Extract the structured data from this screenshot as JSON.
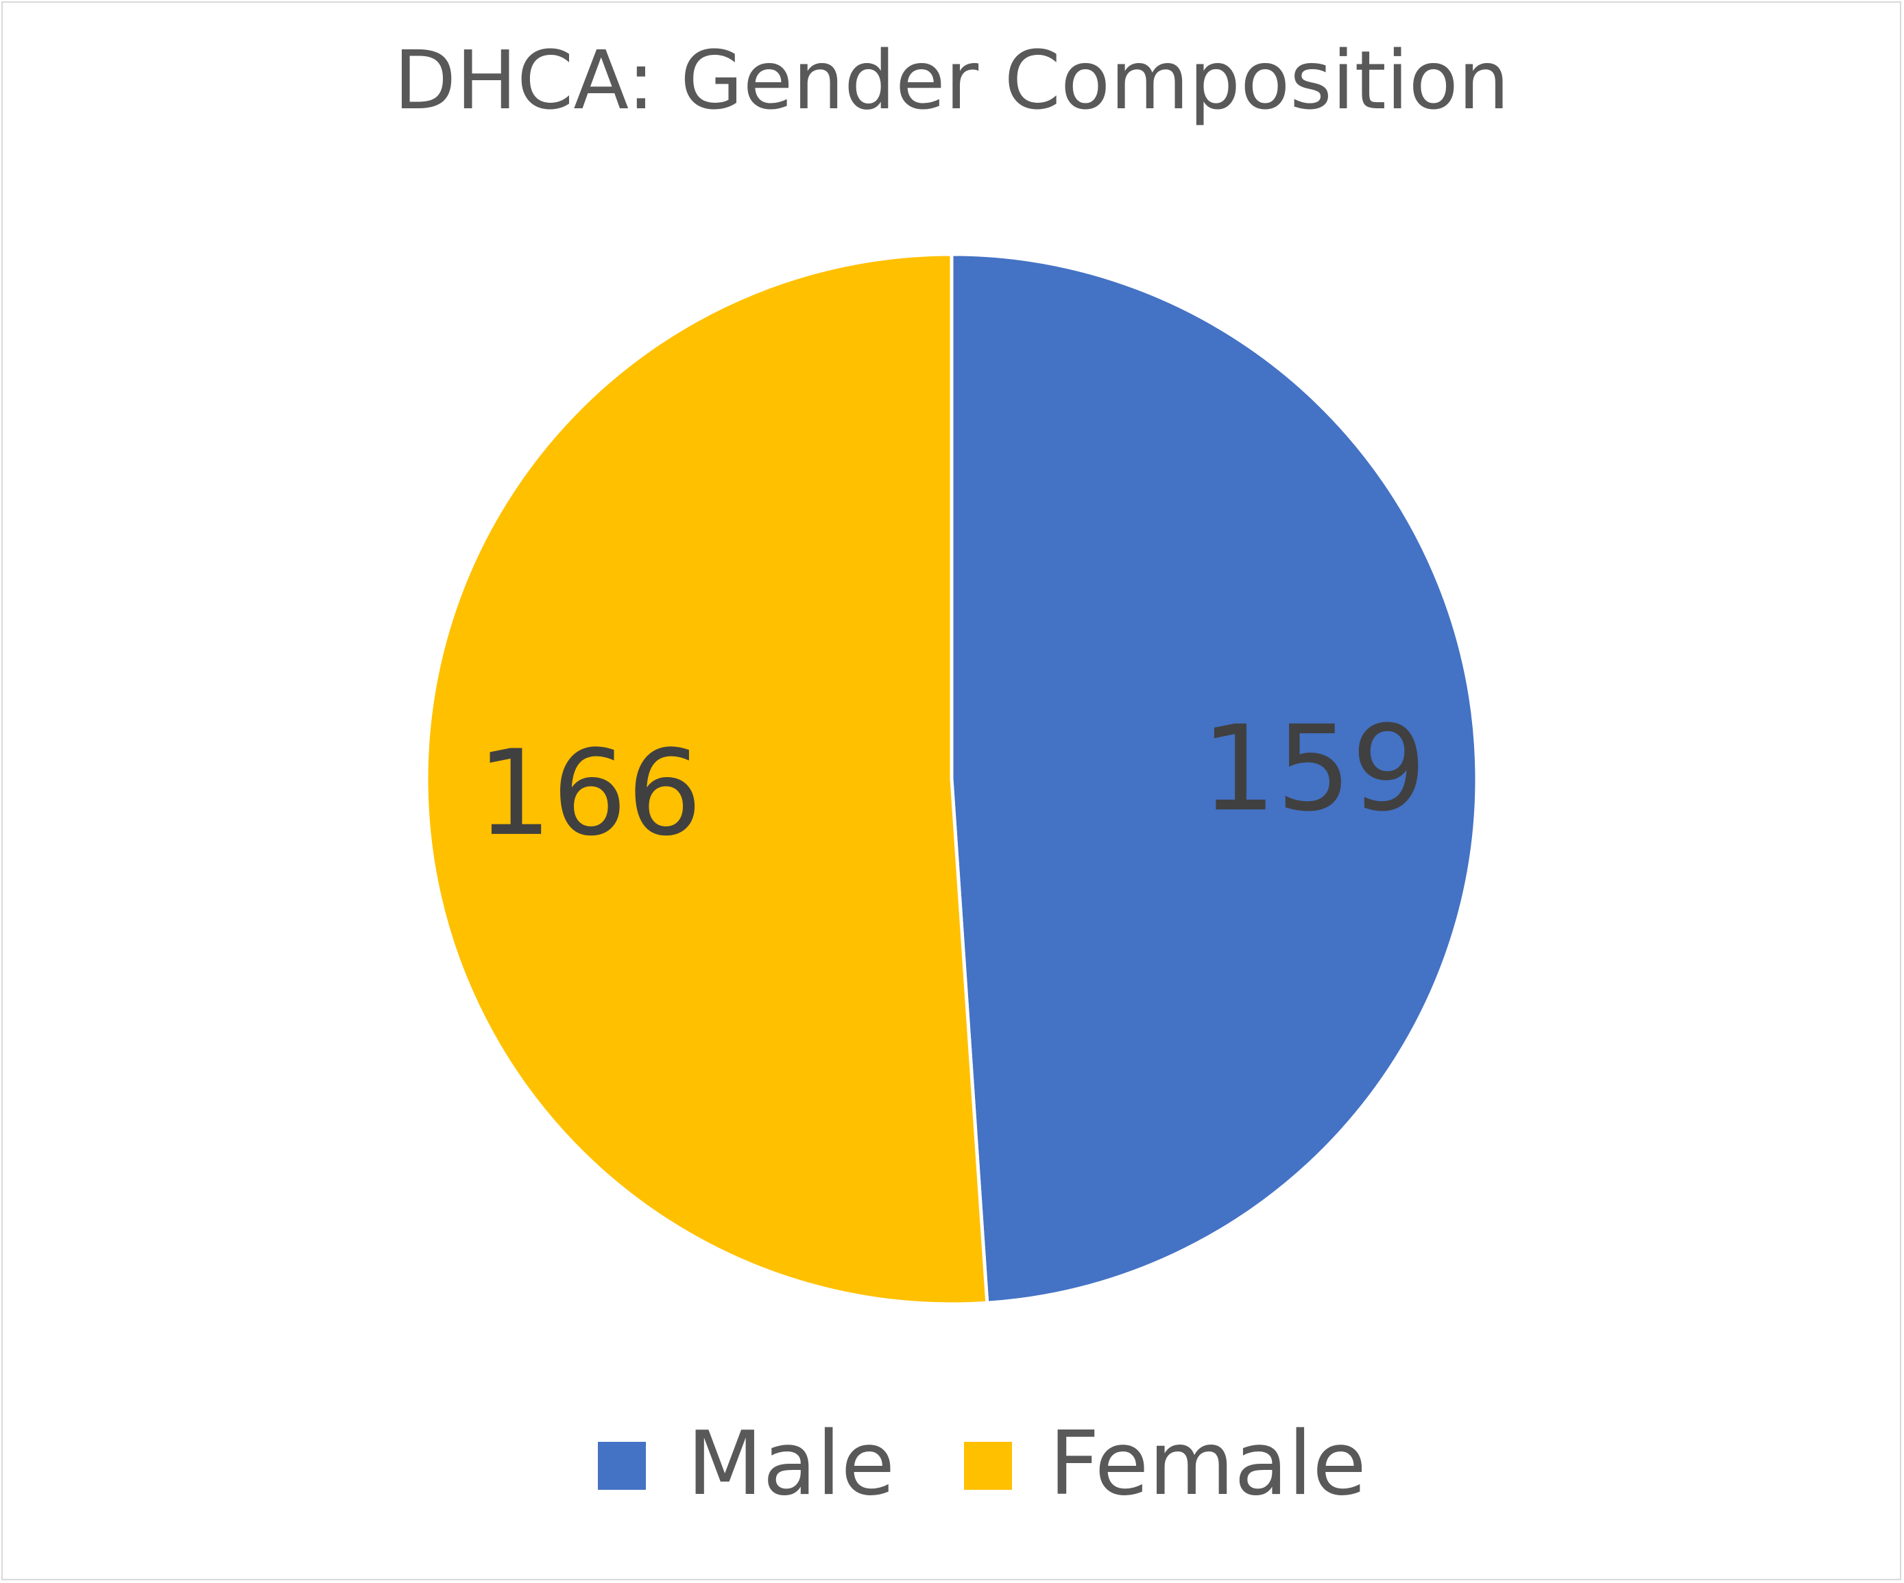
{
  "chart_data": {
    "type": "pie",
    "title": "DHCA: Gender Composition",
    "categories": [
      "Male",
      "Female"
    ],
    "values": [
      159,
      166
    ],
    "colors": [
      "#4472C4",
      "#FFC000"
    ],
    "data_labels": [
      "159",
      "166"
    ],
    "legend": {
      "placement": "bottom",
      "entries": [
        "Male",
        "Female"
      ]
    },
    "start_angle": "12 o'clock",
    "direction": "clockwise"
  }
}
